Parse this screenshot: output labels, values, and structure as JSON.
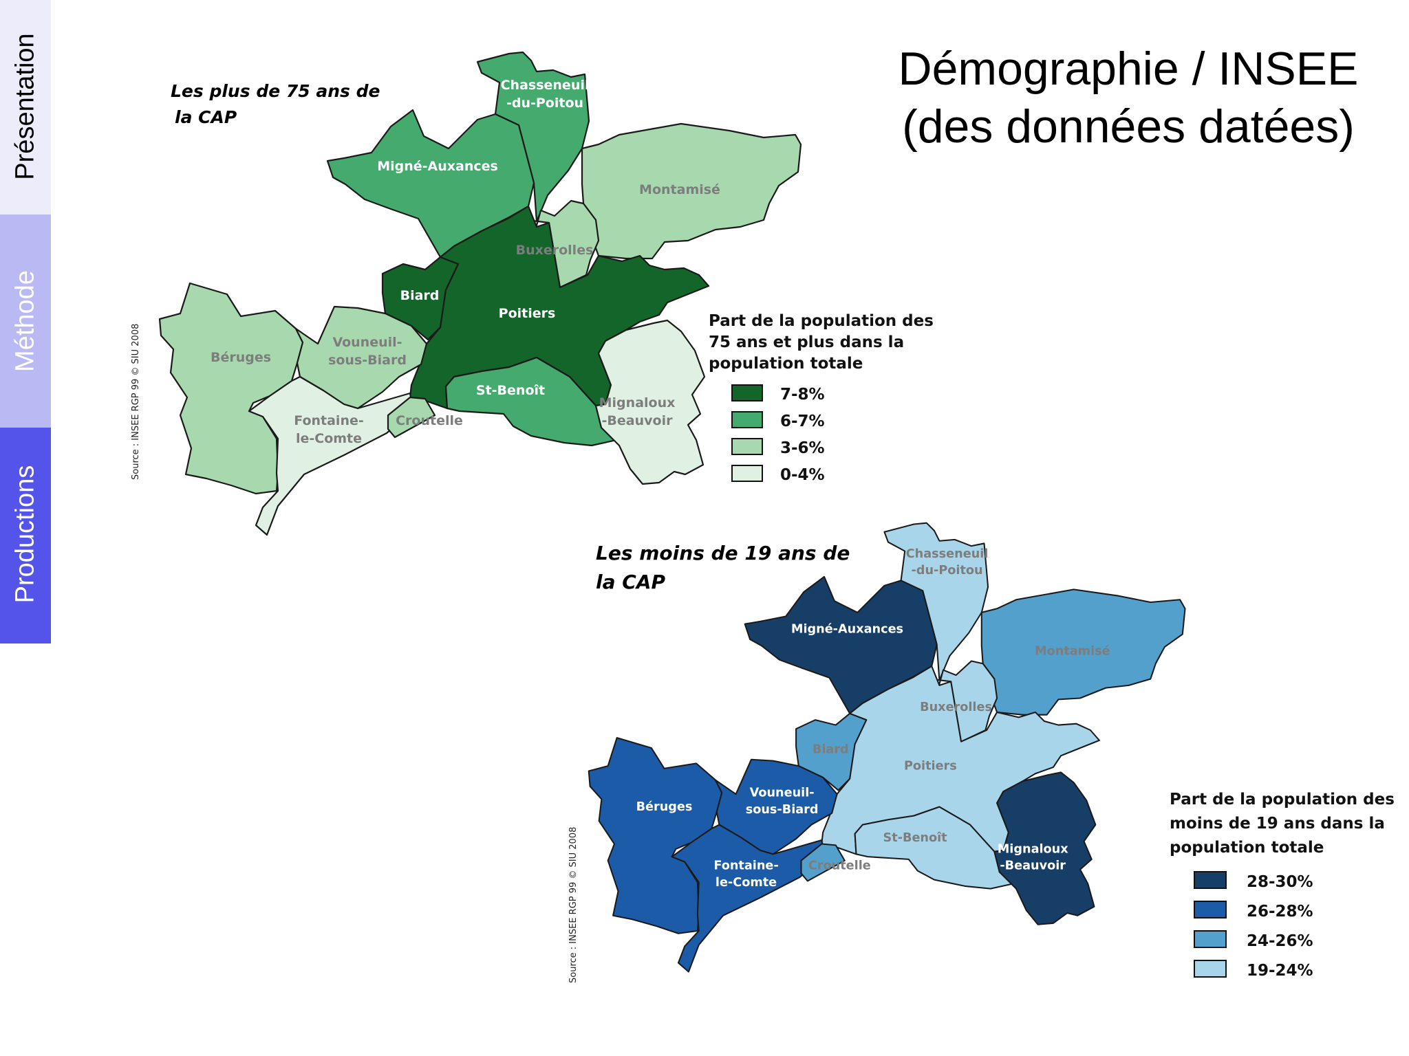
{
  "navigation": {
    "tabs": [
      {
        "label": "Présentation",
        "background": "#ececfb",
        "text_color": "#000000"
      },
      {
        "label": "Méthode",
        "background": "#b9b9f4",
        "text_color": "#ffffff"
      },
      {
        "label": "Productions",
        "background": "#5454ea",
        "text_color": "#ffffff"
      }
    ]
  },
  "page_title": {
    "line1": "Démographie / INSEE",
    "line2": "(des données datées)"
  },
  "map_over75": {
    "title_line1": "Les plus de 75 ans de",
    "title_line2": "la CAP",
    "source": "Source : INSEE RGP 99  © SIU 2008",
    "legend_title": [
      "Part de la population des",
      "75 ans et plus dans la",
      "population totale"
    ],
    "legend": [
      {
        "label": "7-8%",
        "color": "#13652a"
      },
      {
        "label": "6-7%",
        "color": "#45aa6e"
      },
      {
        "label": "3-6%",
        "color": "#a8d9ae"
      },
      {
        "label": "0-4%",
        "color": "#e0f1e4"
      }
    ],
    "communes": [
      {
        "name": "Chasseneuil -du-Poitou",
        "lines": [
          "Chasseneuil",
          "-du-Poitou"
        ],
        "class": "6-7%"
      },
      {
        "name": "Migné-Auxances",
        "lines": [
          "Migné-Auxances"
        ],
        "class": "6-7%"
      },
      {
        "name": "Montamisé",
        "lines": [
          "Montamisé"
        ],
        "class": "3-6%"
      },
      {
        "name": "Buxerolles",
        "lines": [
          "Buxerolles"
        ],
        "class": "3-6%"
      },
      {
        "name": "Biard",
        "lines": [
          "Biard"
        ],
        "class": "7-8%"
      },
      {
        "name": "Poitiers",
        "lines": [
          "Poitiers"
        ],
        "class": "7-8%"
      },
      {
        "name": "Béruges",
        "lines": [
          "Béruges"
        ],
        "class": "3-6%"
      },
      {
        "name": "Vouneuil-sous-Biard",
        "lines": [
          "Vouneuil-",
          "sous-Biard"
        ],
        "class": "3-6%"
      },
      {
        "name": "St-Benoît",
        "lines": [
          "St-Benoît"
        ],
        "class": "6-7%"
      },
      {
        "name": "Mignaloux-Beauvoir",
        "lines": [
          "Mignaloux",
          "-Beauvoir"
        ],
        "class": "0-4%"
      },
      {
        "name": "Fontaine-le-Comte",
        "lines": [
          "Fontaine-",
          "le-Comte"
        ],
        "class": "0-4%"
      },
      {
        "name": "Croutelle",
        "lines": [
          "Croutelle"
        ],
        "class": "3-6%"
      }
    ]
  },
  "map_under19": {
    "title_line1": "Les moins de 19 ans de",
    "title_line2": "la CAP",
    "source": "Source : INSEE RGP 99  © SIU 2008",
    "legend_title": [
      "Part de la population des",
      "moins de 19 ans dans la",
      "population totale"
    ],
    "legend": [
      {
        "label": "28-30%",
        "color": "#163e66"
      },
      {
        "label": "26-28%",
        "color": "#1c5ba8"
      },
      {
        "label": "24-26%",
        "color": "#53a0cc"
      },
      {
        "label": "19-24%",
        "color": "#a9d5ea"
      }
    ],
    "communes": [
      {
        "name": "Chasseneuil -du-Poitou",
        "lines": [
          "Chasseneuil",
          "-du-Poitou"
        ],
        "class": "19-24%"
      },
      {
        "name": "Migné-Auxances",
        "lines": [
          "Migné-Auxances"
        ],
        "class": "28-30%"
      },
      {
        "name": "Montamisé",
        "lines": [
          "Montamisé"
        ],
        "class": "24-26%"
      },
      {
        "name": "Buxerolles",
        "lines": [
          "Buxerolles"
        ],
        "class": "19-24%"
      },
      {
        "name": "Biard",
        "lines": [
          "Biard"
        ],
        "class": "24-26%"
      },
      {
        "name": "Poitiers",
        "lines": [
          "Poitiers"
        ],
        "class": "19-24%"
      },
      {
        "name": "Béruges",
        "lines": [
          "Béruges"
        ],
        "class": "26-28%"
      },
      {
        "name": "Vouneuil-sous-Biard",
        "lines": [
          "Vouneuil-",
          "sous-Biard"
        ],
        "class": "26-28%"
      },
      {
        "name": "St-Benoît",
        "lines": [
          "St-Benoît"
        ],
        "class": "19-24%"
      },
      {
        "name": "Mignaloux-Beauvoir",
        "lines": [
          "Mignaloux",
          "-Beauvoir"
        ],
        "class": "28-30%"
      },
      {
        "name": "Fontaine-le-Comte",
        "lines": [
          "Fontaine-",
          "le-Comte"
        ],
        "class": "26-28%"
      },
      {
        "name": "Croutelle",
        "lines": [
          "Croutelle"
        ],
        "class": "24-26%"
      }
    ]
  }
}
